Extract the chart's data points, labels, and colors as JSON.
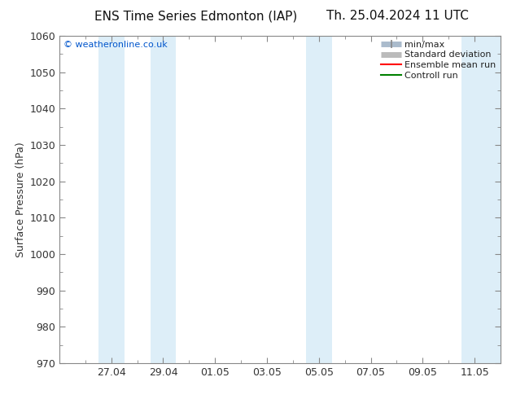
{
  "title_left": "ENS Time Series Edmonton (IAP)",
  "title_right": "Th. 25.04.2024 11 UTC",
  "ylabel": "Surface Pressure (hPa)",
  "ylim": [
    970,
    1060
  ],
  "yticks": [
    970,
    980,
    990,
    1000,
    1010,
    1020,
    1030,
    1040,
    1050,
    1060
  ],
  "x_tick_labels": [
    "27.04",
    "29.04",
    "01.05",
    "03.05",
    "05.05",
    "07.05",
    "09.05",
    "11.05"
  ],
  "x_tick_positions": [
    2,
    4,
    6,
    8,
    10,
    12,
    14,
    16
  ],
  "x_min": 0,
  "x_max": 17,
  "shaded_bands": [
    {
      "x_start": 1.5,
      "x_end": 2.5
    },
    {
      "x_start": 3.5,
      "x_end": 4.5
    },
    {
      "x_start": 9.5,
      "x_end": 10.5
    },
    {
      "x_start": 15.5,
      "x_end": 17.0
    }
  ],
  "shaded_color": "#ddeef8",
  "watermark_text": "© weatheronline.co.uk",
  "watermark_color": "#0055cc",
  "bg_color": "#ffffff",
  "title_fontsize": 11,
  "axis_label_fontsize": 9,
  "tick_fontsize": 9,
  "legend_fontsize": 8,
  "spine_color": "#888888",
  "tick_color": "#333333"
}
